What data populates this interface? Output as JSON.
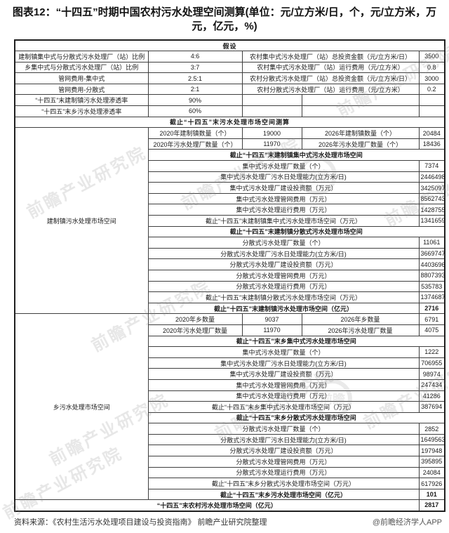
{
  "title": "图表12：“十四五”时期中国农村污水处理空间测算(单位：元/立方米/日，个，元/立方米，万元，亿元，%)",
  "footer": {
    "source": "资料来源：《农村生活污水处理项目建设与投资指南》 前瞻产业研究院整理",
    "credit": "@前瞻经济学人APP"
  },
  "watermark": {
    "text": "前瞻产业研究院",
    "logo_text": "前瞻"
  },
  "colors": {
    "header_blue": "#2471c7",
    "subheader_blue": "#c6dbf2",
    "total_blue": "#aecbe9",
    "border": "#3f3f3f"
  },
  "chart_data": {
    "type": "table",
    "title": "“十四五”时期中国农村污水处理空间测算",
    "units": "元/立方米/日，个，元/立方米，万元，亿元，%",
    "header_assumptions": "假设",
    "assumptions": [
      {
        "label": "建制镇集中式与分散式污水处理厂（站）比例",
        "value": "4:6",
        "label2": "农村集中式污水处理厂（站）总投资金额（元/立方米/日）",
        "value2": "3500"
      },
      {
        "label": "乡集中式与分散式污水处理厂（站）比例",
        "value": "3:7",
        "label2": "农村集中式污水处理厂（站）运行费用（元/立方米）",
        "value2": "0.8"
      },
      {
        "label": "管网费用-集中式",
        "value": "2.5:1",
        "label2": "农村分散式污水处理厂（站）总投资金额（元/立方米/日）",
        "value2": "3000"
      },
      {
        "label": "管网费用-分散式",
        "value": "2:1",
        "label2": "农村分散式污水处理厂（站）运行费用（元/立方米）",
        "value2": "0.2"
      },
      {
        "label": "“十四五”末建制镇污水处理渗透率",
        "value": "90%",
        "label2": "",
        "value2": ""
      },
      {
        "label": "“十四五”末乡污水处理渗透率",
        "value": "60%",
        "label2": "",
        "value2": ""
      }
    ],
    "header_calculation": "截止“十四五”末污水处理市场空间测算",
    "sections": [
      {
        "group": "建制镇污水处理市场空间",
        "pair_rows": [
          {
            "l1": "2020年建制镇数量（个）",
            "v1": "19000",
            "l2": "2026年建制镇数量（个）",
            "v2": "20484"
          },
          {
            "l1": "2020年污水处理厂数量（个）",
            "v1": "11970",
            "l2": "2026年污水处理厂数量（个）",
            "v2": "18436"
          }
        ],
        "subsections": [
          {
            "header": "截止“十四五”末建制镇集中式污水处理市场空间",
            "rows": [
              [
                "集中式污水处理厂数量（个）",
                "7374"
              ],
              [
                "集中式污水处理厂污水日处理能力(立方米/日)",
                "24464980"
              ],
              [
                "集中式污水处理厂建设投资额（万元）",
                "3425097"
              ],
              [
                "集中式污水处理管网费用（万元）",
                "8562743"
              ],
              [
                "集中式污水处理运行费用（万元）",
                "1428755"
              ],
              [
                "截止“十四五”末建制镇集中式污水处理市场空间（万元）",
                "13416595"
              ]
            ]
          },
          {
            "header": "截止“十四五”末建制镇分散式污水处理市场空间",
            "rows": [
              [
                "分散式污水处理厂数量（个）",
                "11061"
              ],
              [
                "分散式污水处理厂污水日处理能力(立方米/日)",
                "36697470"
              ],
              [
                "分散式污水处理厂建设投资额（万元）",
                "4403696"
              ],
              [
                "分散式污水处理管网费用（万元）",
                "8807393"
              ],
              [
                "分散式污水处理运行费用（万元）",
                "535783"
              ],
              [
                "截止“十四五”末建制镇分散式污水处理市场空间（万元）",
                "13746872"
              ]
            ]
          }
        ],
        "total": {
          "label": "截止“十四五”末建制镇污水处理市场空间（亿元）",
          "value": "2716"
        }
      },
      {
        "group": "乡污水处理市场空间",
        "pair_rows": [
          {
            "l1": "2020年乡数量",
            "v1": "9037",
            "l2": "2026年乡数量",
            "v2": "6791"
          },
          {
            "l1": "2020年污水处理厂数量",
            "v1": "11970",
            "l2": "2026年污水处理厂数量",
            "v2": "4075"
          }
        ],
        "subsections": [
          {
            "header": "截止“十四五”末乡集中式污水处理市场空间",
            "rows": [
              [
                "集中式污水处理厂数量（个）",
                "1222"
              ],
              [
                "集中式污水处理厂污水日处理能力(立方米/日)",
                "706955"
              ],
              [
                "集中式污水处理厂建设投资额（万元）",
                "98974"
              ],
              [
                "集中式污水处理管网费用（万元）",
                "247434"
              ],
              [
                "集中式污水处理运行费用（万元）",
                "41286"
              ],
              [
                "截止“十四五”末乡集中式污水处理市场空间（万元）",
                "387694"
              ]
            ]
          },
          {
            "header": "截止“十四五”末乡分散式污水处理市场空间",
            "rows": [
              [
                "分散式污水处理厂数量（个）",
                "2852"
              ],
              [
                "分散式污水处理厂污水日处理能力(立方米/日)",
                "1649563"
              ],
              [
                "分散式污水处理厂建设投资额（万元）",
                "197948"
              ],
              [
                "分散式污水处理管网费用（万元）",
                "395895"
              ],
              [
                "分散式污水处理运行费用（万元）",
                "24084"
              ],
              [
                "截止“十四五”末乡分散式污水处理市场空间（万元）",
                "617926"
              ]
            ]
          }
        ],
        "total": {
          "label": "截止“十四五”末乡污水处理市场空间（亿元）",
          "value": "101"
        }
      }
    ],
    "grand_total": {
      "label": "“十四五”末农村污水处理市场空间（亿元）",
      "value": "2817"
    }
  }
}
